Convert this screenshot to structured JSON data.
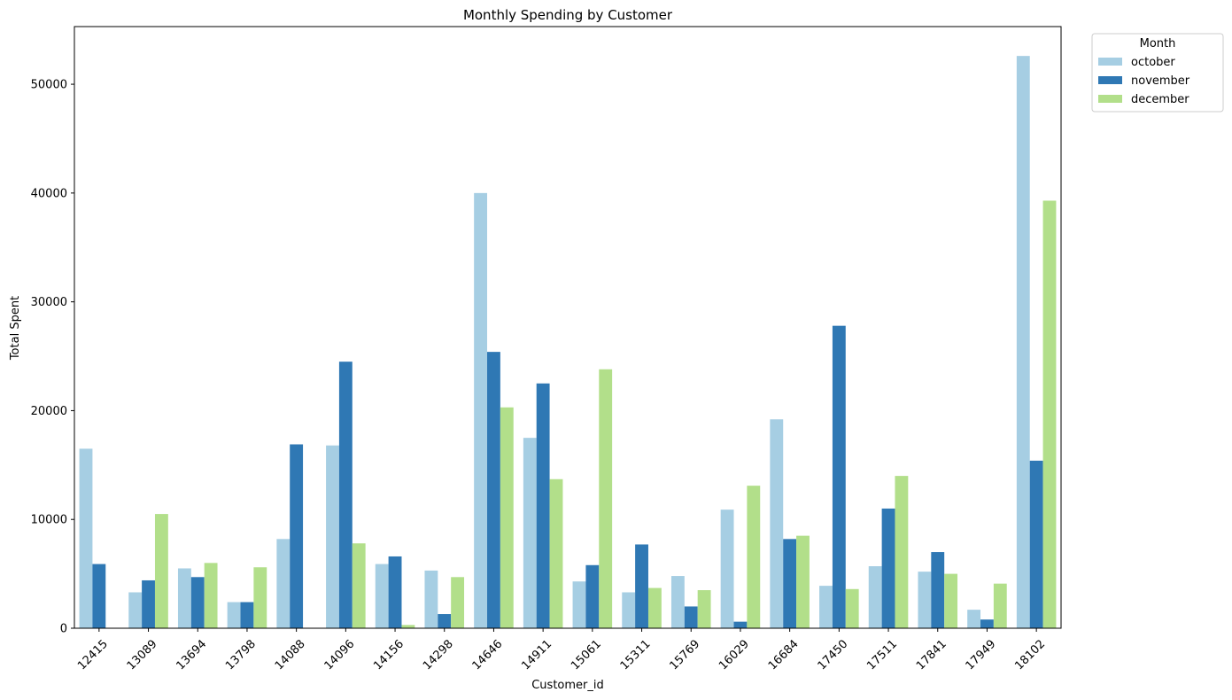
{
  "chart_data": {
    "type": "bar",
    "title": "Monthly Spending by Customer",
    "xlabel": "Customer_id",
    "ylabel": "Total Spent",
    "ylim": [
      0,
      55300
    ],
    "yticks": [
      0,
      10000,
      20000,
      30000,
      40000,
      50000
    ],
    "grid": false,
    "legend": {
      "title": "Month",
      "placement": "upper right, outside plot"
    },
    "categories": [
      "12415",
      "13089",
      "13694",
      "13798",
      "14088",
      "14096",
      "14156",
      "14298",
      "14646",
      "14911",
      "15061",
      "15311",
      "15769",
      "16029",
      "16684",
      "17450",
      "17511",
      "17841",
      "17949",
      "18102"
    ],
    "series": [
      {
        "name": "october",
        "color": "#a6cee3",
        "values": [
          16500,
          3300,
          5500,
          2400,
          8200,
          16800,
          5900,
          5300,
          40000,
          17500,
          4300,
          3300,
          4800,
          10900,
          19200,
          3900,
          5700,
          5200,
          1700,
          52600
        ]
      },
      {
        "name": "november",
        "color": "#2f78b4",
        "values": [
          5900,
          4400,
          4700,
          2400,
          16900,
          24500,
          6600,
          1300,
          25400,
          22500,
          5800,
          7700,
          2000,
          600,
          8200,
          27800,
          11000,
          7000,
          800,
          15400
        ]
      },
      {
        "name": "december",
        "color": "#b2df8a",
        "values": [
          0,
          10500,
          6000,
          5600,
          0,
          7800,
          300,
          4700,
          20300,
          13700,
          23800,
          3700,
          3500,
          13100,
          8500,
          3600,
          14000,
          5000,
          4100,
          39300
        ]
      }
    ]
  }
}
